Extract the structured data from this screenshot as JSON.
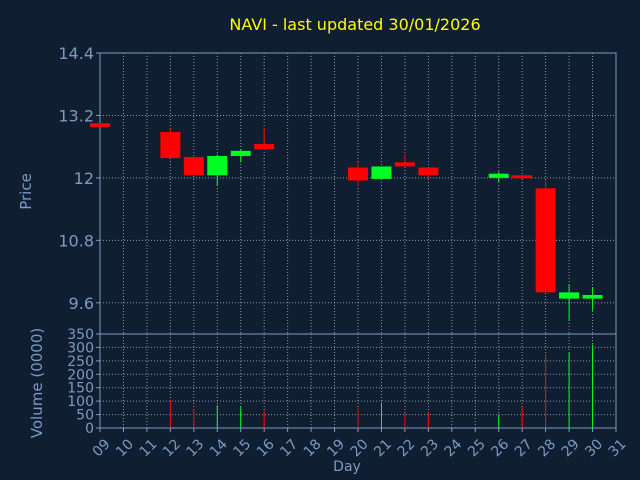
{
  "chart_data": {
    "type": "candlestick",
    "title": "NAVI - last updated 30/01/2026",
    "xlabel": "Day",
    "x_ticks": [
      "09",
      "10",
      "11",
      "12",
      "13",
      "14",
      "15",
      "16",
      "17",
      "18",
      "19",
      "20",
      "21",
      "22",
      "23",
      "24",
      "25",
      "26",
      "27",
      "28",
      "29",
      "30",
      "31"
    ],
    "price_panel": {
      "ylabel": "Price",
      "ylim": [
        9.0,
        14.4
      ],
      "y_ticks": [
        14.4,
        13.2,
        12,
        10.8,
        9.6
      ],
      "y_tick_labels": [
        "14.4",
        "13.2",
        "12",
        "10.8",
        "9.6"
      ]
    },
    "volume_panel": {
      "ylabel": "Volume (0000)",
      "ylim": [
        0,
        350
      ],
      "y_ticks": [
        0,
        50,
        100,
        150,
        200,
        250,
        300,
        350
      ],
      "y_tick_labels": [
        "0",
        "50",
        "100",
        "150",
        "200",
        "250",
        "300",
        "350"
      ]
    },
    "colors": {
      "up": "#00ff22",
      "down": "#ff0000",
      "title": "#ffff00",
      "text": "#7b9ac4",
      "grid": "#ffffff"
    },
    "candles": [
      {
        "day": 9,
        "open": 13.05,
        "close": 12.98,
        "high": 13.05,
        "low": 12.98,
        "volume": 0
      },
      {
        "day": 12,
        "open": 12.88,
        "close": 12.38,
        "high": 12.95,
        "low": 12.38,
        "volume": 105
      },
      {
        "day": 13,
        "open": 12.4,
        "close": 12.05,
        "high": 12.4,
        "low": 12.05,
        "volume": 70
      },
      {
        "day": 14,
        "open": 12.05,
        "close": 12.42,
        "high": 12.45,
        "low": 11.85,
        "volume": 85
      },
      {
        "day": 15,
        "open": 12.42,
        "close": 12.52,
        "high": 12.55,
        "low": 12.3,
        "volume": 80
      },
      {
        "day": 16,
        "open": 12.65,
        "close": 12.55,
        "high": 12.95,
        "low": 12.55,
        "volume": 65
      },
      {
        "day": 20,
        "open": 12.2,
        "close": 11.95,
        "high": 12.3,
        "low": 11.85,
        "volume": 75
      },
      {
        "day": 21,
        "open": 11.98,
        "close": 12.22,
        "high": 12.22,
        "low": 11.98,
        "volume": 95
      },
      {
        "day": 22,
        "open": 12.3,
        "close": 12.22,
        "high": 12.45,
        "low": 12.22,
        "volume": 55
      },
      {
        "day": 23,
        "open": 12.2,
        "close": 12.05,
        "high": 12.2,
        "low": 12.0,
        "volume": 60
      },
      {
        "day": 26,
        "open": 12.0,
        "close": 12.08,
        "high": 12.12,
        "low": 11.92,
        "volume": 50
      },
      {
        "day": 27,
        "open": 12.05,
        "close": 12.0,
        "high": 12.05,
        "low": 11.98,
        "volume": 80
      },
      {
        "day": 28,
        "open": 11.8,
        "close": 9.8,
        "high": 11.95,
        "low": 9.8,
        "volume": 270
      },
      {
        "day": 29,
        "open": 9.68,
        "close": 9.8,
        "high": 9.95,
        "low": 9.25,
        "volume": 280
      },
      {
        "day": 30,
        "open": 9.68,
        "close": 9.75,
        "high": 9.9,
        "low": 9.45,
        "volume": 310
      }
    ]
  }
}
